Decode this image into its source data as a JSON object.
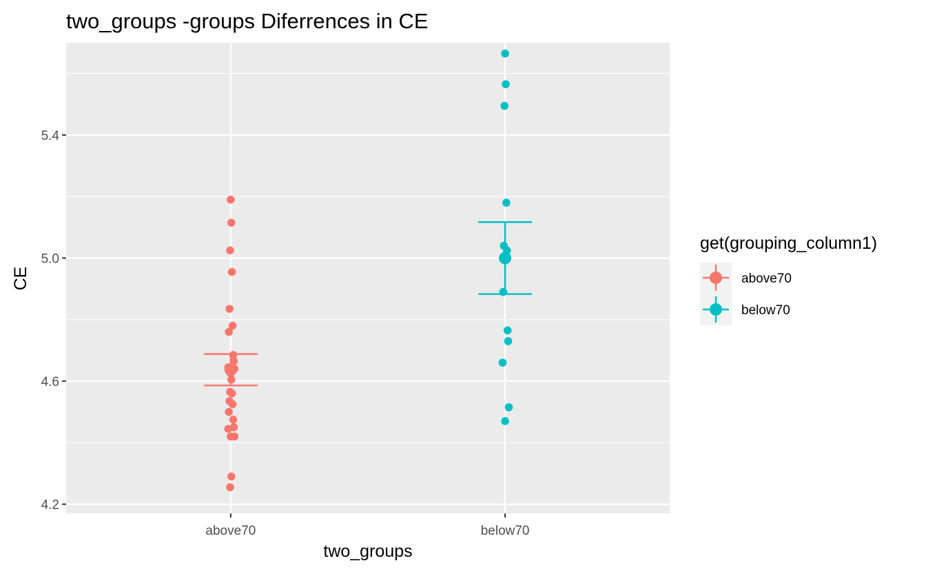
{
  "chart_data": {
    "type": "scatter",
    "title": "two_groups -groups Diferrences in  CE",
    "xlabel": "two_groups",
    "ylabel": "CE",
    "categories": [
      "above70",
      "below70"
    ],
    "ylim": [
      4.17,
      5.7
    ],
    "yticks": [
      4.2,
      4.6,
      5.0,
      5.4
    ],
    "ytick_labels": [
      "4.2",
      "4.6",
      "5.0",
      "5.4"
    ],
    "grid": true,
    "legend": {
      "title": "get(grouping_column1)",
      "position": "right",
      "entries": [
        "above70",
        "below70"
      ]
    },
    "series": [
      {
        "name": "above70",
        "color": "#F8766D",
        "points": [
          5.19,
          5.115,
          5.025,
          4.955,
          4.835,
          4.78,
          4.76,
          4.685,
          4.665,
          4.645,
          4.64,
          4.625,
          4.605,
          4.565,
          4.56,
          4.535,
          4.525,
          4.5,
          4.475,
          4.45,
          4.445,
          4.42,
          4.42,
          4.29,
          4.255
        ],
        "mean": 4.637,
        "error_low": 4.586,
        "error_high": 4.688
      },
      {
        "name": "below70",
        "color": "#00BFC4",
        "points": [
          5.665,
          5.565,
          5.495,
          5.18,
          5.04,
          5.025,
          4.89,
          4.765,
          4.73,
          4.66,
          4.515,
          4.47
        ],
        "mean": 5.0,
        "error_low": 4.883,
        "error_high": 5.117
      }
    ]
  }
}
